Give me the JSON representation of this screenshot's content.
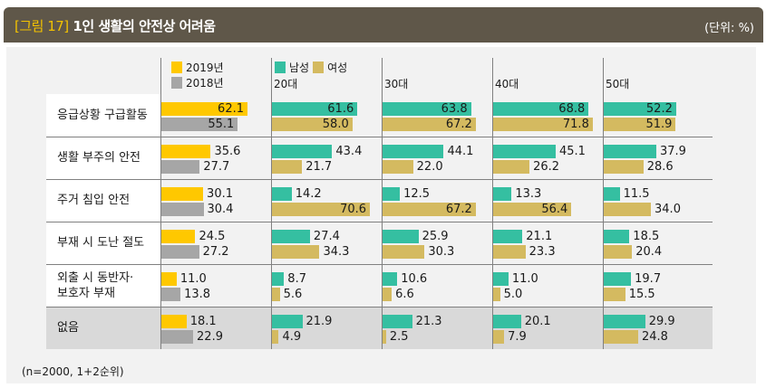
{
  "header": {
    "figure_label": "[그림 17]",
    "title": "1인 생활의 안전상 어려움",
    "unit": "(단위: %)"
  },
  "chart_data": {
    "type": "bar",
    "title": "1인 생활의 안전상 어려움",
    "unit": "%",
    "categories": [
      "응급상황 구급활동",
      "생활 부주의 안전",
      "주거 침입 안전",
      "부재 시 도난 절도",
      "외출 시 동반자·보호자 부재",
      "없음"
    ],
    "year_legend": [
      "2019년",
      "2018년"
    ],
    "gender_legend": [
      "남성",
      "여성"
    ],
    "age_groups": [
      "20대",
      "30대",
      "40대",
      "50대"
    ],
    "year_series": [
      {
        "name": "2019년",
        "color": "#ffc800",
        "values": [
          62.1,
          35.6,
          30.1,
          24.5,
          11.0,
          18.1
        ]
      },
      {
        "name": "2018년",
        "color": "#a6a6a6",
        "values": [
          55.1,
          27.7,
          30.4,
          27.2,
          13.8,
          22.9
        ]
      }
    ],
    "age_series": [
      {
        "age": "20대",
        "male": [
          61.6,
          43.4,
          14.2,
          27.4,
          8.7,
          21.9
        ],
        "female": [
          58.0,
          21.7,
          70.6,
          34.3,
          5.6,
          4.9
        ]
      },
      {
        "age": "30대",
        "male": [
          63.8,
          44.1,
          12.5,
          25.9,
          10.6,
          21.3
        ],
        "female": [
          67.2,
          22.0,
          67.2,
          30.3,
          6.6,
          2.5
        ]
      },
      {
        "age": "40대",
        "male": [
          68.8,
          45.1,
          13.3,
          21.1,
          11.0,
          20.1
        ],
        "female": [
          71.8,
          26.2,
          56.4,
          23.3,
          5.0,
          7.9
        ]
      },
      {
        "age": "50대",
        "male": [
          52.2,
          37.9,
          11.5,
          18.5,
          19.7,
          29.9
        ],
        "female": [
          51.9,
          28.6,
          34.0,
          20.4,
          15.5,
          24.8
        ]
      }
    ],
    "colors": {
      "male": "#35bfa1",
      "female": "#d4ba60"
    }
  },
  "row_labels": [
    "응급상황 구급활동",
    "생활 부주의 안전",
    "주거 침입 안전",
    "부재 시 도난 절도",
    "외출 시 동반자·\n보호자 부재",
    "없음"
  ],
  "note": "(n=2000, 1+2순위)"
}
